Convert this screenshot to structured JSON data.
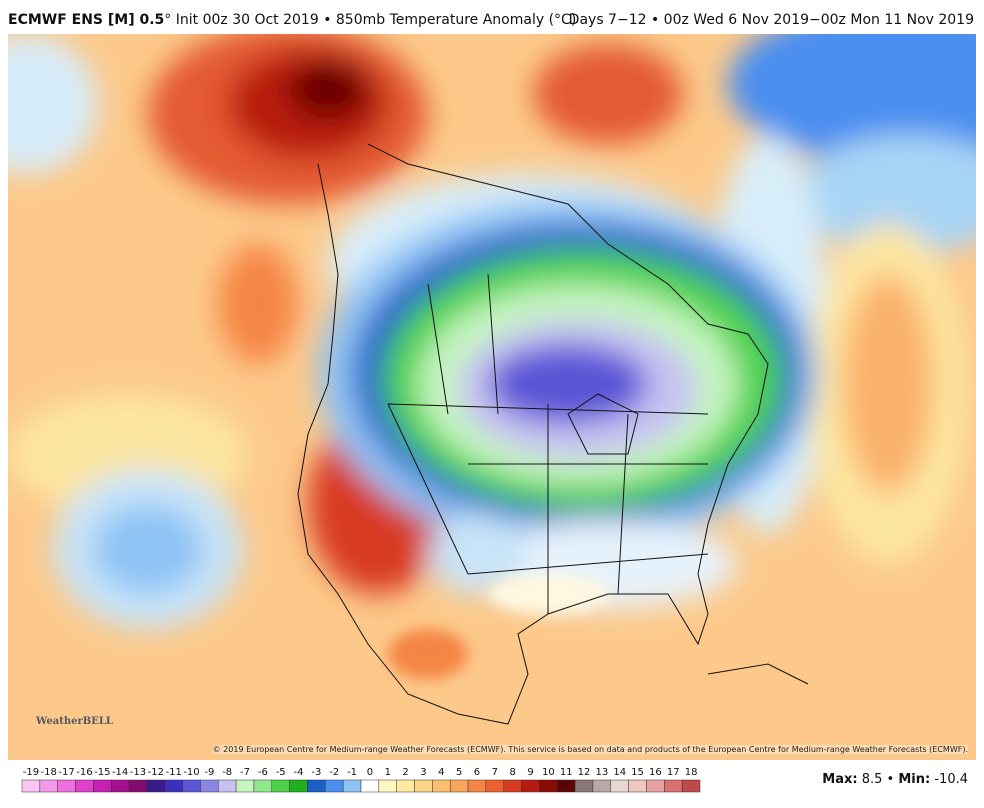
{
  "header": {
    "model": "ECMWF ENS [M] 0.5",
    "details": "° Init 00z 30 Oct 2019 • 850mb Temperature Anomaly (°C)",
    "period": "Days 7−12 • 00z Wed 6 Nov 2019−00z Mon 11 Nov 2019"
  },
  "map": {
    "copyright": "© 2019 European Centre for Medium-range Weather Forecasts (ECMWF). This service is based on data and products of the European Centre for Medium-range Weather Forecasts (ECMWF).",
    "logo": "WeatherBELL"
  },
  "colorbar": {
    "labels": [
      -19,
      -18,
      -17,
      -16,
      -15,
      -14,
      -13,
      -12,
      -11,
      -10,
      -9,
      -8,
      -7,
      -6,
      -5,
      -4,
      -3,
      -2,
      -1,
      0,
      1,
      2,
      3,
      4,
      5,
      6,
      7,
      8,
      9,
      10,
      11,
      12,
      13,
      14,
      15,
      16,
      17,
      18
    ],
    "colors": [
      "#fbc4f5",
      "#f59aea",
      "#ee6fde",
      "#e040cc",
      "#c71fb4",
      "#a5108f",
      "#850a6f",
      "#3a1a8a",
      "#3b2fc0",
      "#5a55d6",
      "#8a86e6",
      "#c8c2f2",
      "#c6f5c0",
      "#8fe88a",
      "#4dd14a",
      "#1fb01f",
      "#1a5ec8",
      "#4a8ef0",
      "#8ec3f5",
      "#ffffff",
      "#fff8c0",
      "#ffeaa0",
      "#fdd68a",
      "#fcc070",
      "#f9a55a",
      "#f58545",
      "#ec6030",
      "#d83a20",
      "#b81a10",
      "#8a0a08",
      "#5c0404",
      "#8a7878",
      "#b8a8a8",
      "#e8d8d0",
      "#f0c8c0",
      "#e8a0a0",
      "#d87070",
      "#c04848"
    ]
  },
  "stats": {
    "max_label": "Max:",
    "max": 8.5,
    "sep": "•",
    "min_label": "Min:",
    "min": -10.4
  }
}
